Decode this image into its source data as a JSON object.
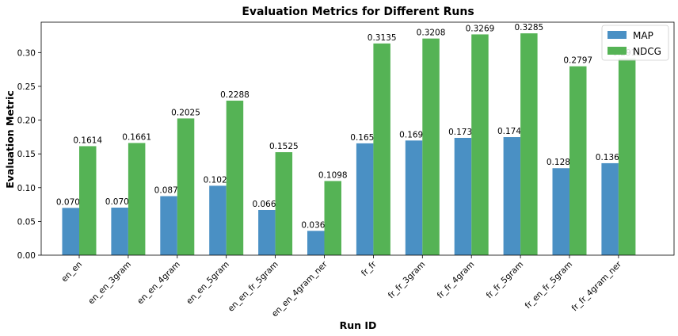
{
  "chart_data": {
    "type": "bar",
    "title": "Evaluation Metrics for Different Runs",
    "xlabel": "Run ID",
    "ylabel": "Evaluation Metric",
    "categories": [
      "en_en",
      "en_en_3gram",
      "en_en_4gram",
      "en_en_5gram",
      "en_en_fr_5gram",
      "en_en_4gram_ner",
      "fr_fr",
      "fr_fr_3gram",
      "fr_fr_4gram",
      "fr_fr_5gram",
      "fr_en_fr_5gram",
      "fr_fr_4gram_ner"
    ],
    "series": [
      {
        "name": "MAP",
        "color": "#4a90c4",
        "values": [
          0.07,
          0.0704,
          0.0874,
          0.1028,
          0.0669,
          0.036,
          0.1656,
          0.1698,
          0.1737,
          0.1748,
          0.1288,
          0.1362
        ],
        "labels": [
          "0.0700",
          "0.0704",
          "0.0874",
          "0.1028",
          "0.0669",
          "0.0360",
          "0.1656",
          "0.1698",
          "0.1737",
          "0.1748",
          "0.1288",
          "0.1362"
        ]
      },
      {
        "name": "NDCG",
        "color": "#55b355",
        "values": [
          0.1614,
          0.1661,
          0.2025,
          0.2288,
          0.1525,
          0.1098,
          0.3135,
          0.3208,
          0.3269,
          0.3285,
          0.2797,
          0.2911
        ],
        "labels": [
          "0.1614",
          "0.1661",
          "0.2025",
          "0.2288",
          "0.1525",
          "0.1098",
          "0.3135",
          "0.3208",
          "0.3269",
          "0.3285",
          "0.2797",
          "0.2911"
        ]
      }
    ],
    "yticks": [
      "0.00",
      "0.05",
      "0.10",
      "0.15",
      "0.20",
      "0.25",
      "0.30"
    ],
    "ytick_values": [
      0,
      0.05,
      0.1,
      0.15,
      0.2,
      0.25,
      0.3
    ],
    "ylim": [
      0,
      0.345
    ],
    "legend": "top-right",
    "grid": false
  }
}
